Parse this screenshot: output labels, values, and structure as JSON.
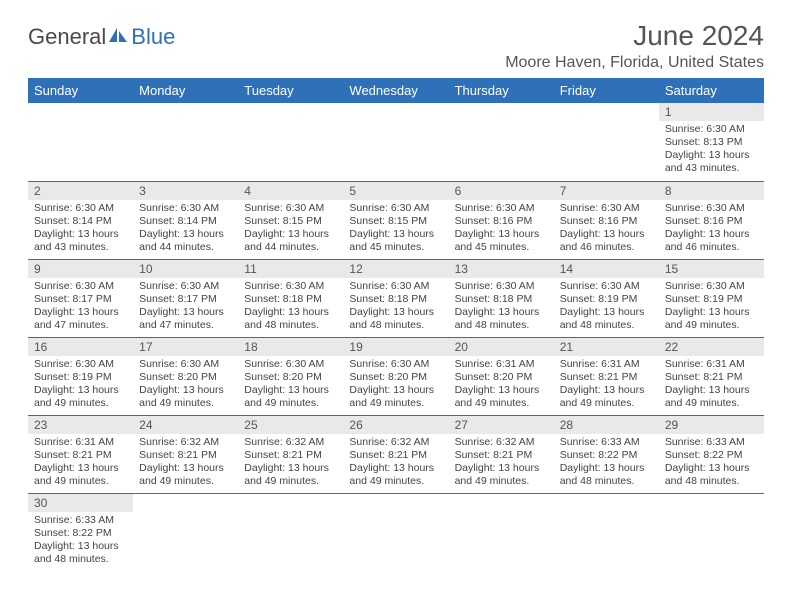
{
  "logo": {
    "text1": "General",
    "text2": "Blue"
  },
  "title": "June 2024",
  "location": "Moore Haven, Florida, United States",
  "colors": {
    "header_bg": "#2f71b8",
    "header_fg": "#ffffff",
    "daynum_bg": "#e9e9e9",
    "text": "#444444",
    "border": "#2f71b8"
  },
  "columns": [
    "Sunday",
    "Monday",
    "Tuesday",
    "Wednesday",
    "Thursday",
    "Friday",
    "Saturday"
  ],
  "weeks": [
    [
      null,
      null,
      null,
      null,
      null,
      null,
      {
        "n": "1",
        "sr": "6:30 AM",
        "ss": "8:13 PM",
        "dl": "13 hours and 43 minutes."
      }
    ],
    [
      {
        "n": "2",
        "sr": "6:30 AM",
        "ss": "8:14 PM",
        "dl": "13 hours and 43 minutes."
      },
      {
        "n": "3",
        "sr": "6:30 AM",
        "ss": "8:14 PM",
        "dl": "13 hours and 44 minutes."
      },
      {
        "n": "4",
        "sr": "6:30 AM",
        "ss": "8:15 PM",
        "dl": "13 hours and 44 minutes."
      },
      {
        "n": "5",
        "sr": "6:30 AM",
        "ss": "8:15 PM",
        "dl": "13 hours and 45 minutes."
      },
      {
        "n": "6",
        "sr": "6:30 AM",
        "ss": "8:16 PM",
        "dl": "13 hours and 45 minutes."
      },
      {
        "n": "7",
        "sr": "6:30 AM",
        "ss": "8:16 PM",
        "dl": "13 hours and 46 minutes."
      },
      {
        "n": "8",
        "sr": "6:30 AM",
        "ss": "8:16 PM",
        "dl": "13 hours and 46 minutes."
      }
    ],
    [
      {
        "n": "9",
        "sr": "6:30 AM",
        "ss": "8:17 PM",
        "dl": "13 hours and 47 minutes."
      },
      {
        "n": "10",
        "sr": "6:30 AM",
        "ss": "8:17 PM",
        "dl": "13 hours and 47 minutes."
      },
      {
        "n": "11",
        "sr": "6:30 AM",
        "ss": "8:18 PM",
        "dl": "13 hours and 48 minutes."
      },
      {
        "n": "12",
        "sr": "6:30 AM",
        "ss": "8:18 PM",
        "dl": "13 hours and 48 minutes."
      },
      {
        "n": "13",
        "sr": "6:30 AM",
        "ss": "8:18 PM",
        "dl": "13 hours and 48 minutes."
      },
      {
        "n": "14",
        "sr": "6:30 AM",
        "ss": "8:19 PM",
        "dl": "13 hours and 48 minutes."
      },
      {
        "n": "15",
        "sr": "6:30 AM",
        "ss": "8:19 PM",
        "dl": "13 hours and 49 minutes."
      }
    ],
    [
      {
        "n": "16",
        "sr": "6:30 AM",
        "ss": "8:19 PM",
        "dl": "13 hours and 49 minutes."
      },
      {
        "n": "17",
        "sr": "6:30 AM",
        "ss": "8:20 PM",
        "dl": "13 hours and 49 minutes."
      },
      {
        "n": "18",
        "sr": "6:30 AM",
        "ss": "8:20 PM",
        "dl": "13 hours and 49 minutes."
      },
      {
        "n": "19",
        "sr": "6:30 AM",
        "ss": "8:20 PM",
        "dl": "13 hours and 49 minutes."
      },
      {
        "n": "20",
        "sr": "6:31 AM",
        "ss": "8:20 PM",
        "dl": "13 hours and 49 minutes."
      },
      {
        "n": "21",
        "sr": "6:31 AM",
        "ss": "8:21 PM",
        "dl": "13 hours and 49 minutes."
      },
      {
        "n": "22",
        "sr": "6:31 AM",
        "ss": "8:21 PM",
        "dl": "13 hours and 49 minutes."
      }
    ],
    [
      {
        "n": "23",
        "sr": "6:31 AM",
        "ss": "8:21 PM",
        "dl": "13 hours and 49 minutes."
      },
      {
        "n": "24",
        "sr": "6:32 AM",
        "ss": "8:21 PM",
        "dl": "13 hours and 49 minutes."
      },
      {
        "n": "25",
        "sr": "6:32 AM",
        "ss": "8:21 PM",
        "dl": "13 hours and 49 minutes."
      },
      {
        "n": "26",
        "sr": "6:32 AM",
        "ss": "8:21 PM",
        "dl": "13 hours and 49 minutes."
      },
      {
        "n": "27",
        "sr": "6:32 AM",
        "ss": "8:21 PM",
        "dl": "13 hours and 49 minutes."
      },
      {
        "n": "28",
        "sr": "6:33 AM",
        "ss": "8:22 PM",
        "dl": "13 hours and 48 minutes."
      },
      {
        "n": "29",
        "sr": "6:33 AM",
        "ss": "8:22 PM",
        "dl": "13 hours and 48 minutes."
      }
    ],
    [
      {
        "n": "30",
        "sr": "6:33 AM",
        "ss": "8:22 PM",
        "dl": "13 hours and 48 minutes."
      },
      null,
      null,
      null,
      null,
      null,
      null
    ]
  ],
  "labels": {
    "sunrise": "Sunrise: ",
    "sunset": "Sunset: ",
    "daylight": "Daylight: "
  }
}
